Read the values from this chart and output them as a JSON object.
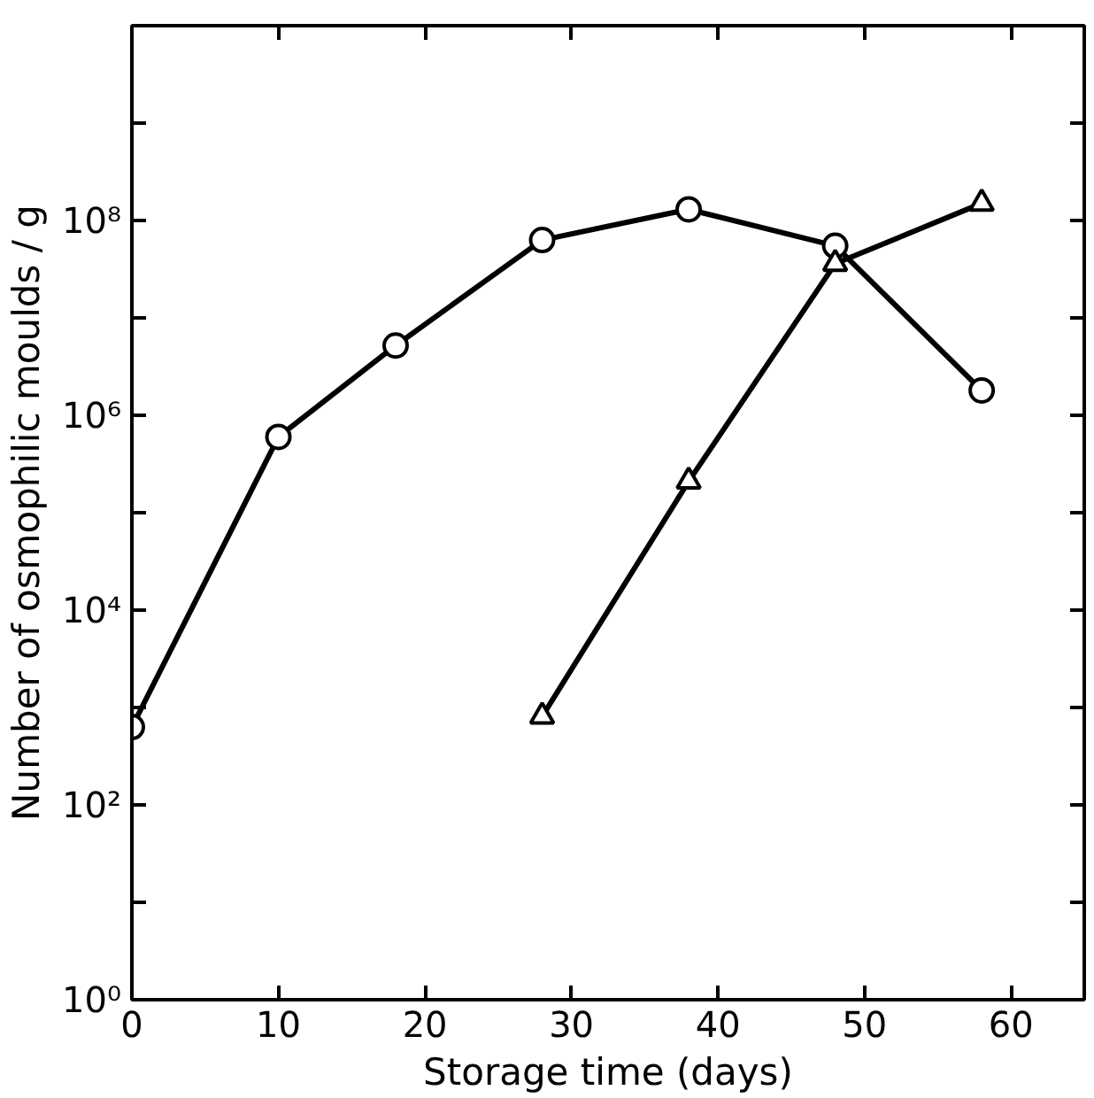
{
  "chart_data": {
    "type": "line",
    "xlabel": "Storage time (days)",
    "ylabel": "Number of osmophilic moulds / g",
    "log": "y",
    "grid": false,
    "line_style": "solid",
    "xlim": [
      0,
      65
    ],
    "xticks": [
      0,
      10,
      20,
      30,
      40,
      50,
      60
    ],
    "ylim": [
      1,
      10000000000
    ],
    "yticks": [
      {
        "value": 1,
        "label": "10⁰"
      },
      {
        "value": 10,
        "label": null
      },
      {
        "value": 100,
        "label": "10²"
      },
      {
        "value": 1000,
        "label": null
      },
      {
        "value": 10000,
        "label": "10⁴"
      },
      {
        "value": 100000,
        "label": null
      },
      {
        "value": 1000000,
        "label": "10⁶"
      },
      {
        "value": 10000000,
        "label": null
      },
      {
        "value": 100000000,
        "label": "10⁸"
      },
      {
        "value": 1000000000,
        "label": null
      }
    ],
    "series": [
      {
        "color": "#000000",
        "marker": "circle",
        "x": [
          0,
          10,
          18,
          28,
          38,
          48,
          58
        ],
        "values": [
          630,
          600000,
          5200000,
          63000000,
          130000000,
          55000000,
          1800000
        ]
      },
      {
        "color": "#000000",
        "marker": "triangle",
        "x": [
          28,
          38,
          48,
          58
        ],
        "values": [
          810,
          210000,
          36000000,
          150000000
        ]
      }
    ]
  }
}
